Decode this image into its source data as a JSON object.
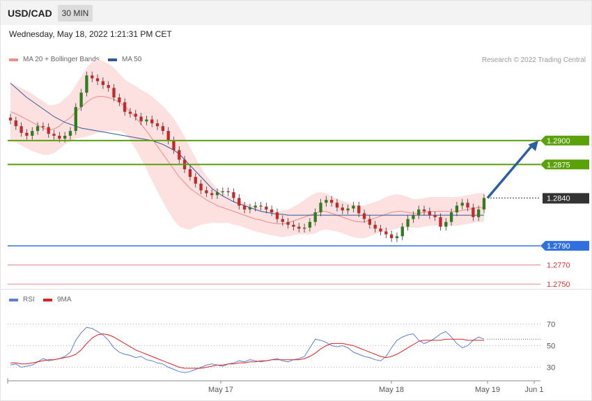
{
  "header": {
    "symbol": "USD/CAD",
    "timeframe": "30 MIN"
  },
  "timestamp": "Wednesday, May 18, 2022 1:21:31 PM CET",
  "legend": {
    "ma20_label": "MA 20 + Bollinger Bands",
    "ma20_color": "#f28a8a",
    "ma50_label": "MA 50",
    "ma50_color": "#2f5a9a"
  },
  "credit": "Research © 2022 Trading Central",
  "rsi_legend": {
    "rsi_label": "RSI",
    "rsi_color": "#5b7fd6",
    "ma_label": "9MA",
    "ma_color": "#e02020"
  },
  "chart_data": [
    {
      "type": "candlestick",
      "price_range": [
        1.2745,
        1.2985
      ],
      "levels": [
        {
          "value": 1.29,
          "label": "1.2900",
          "color": "#5aa10a",
          "kind": "resistance"
        },
        {
          "value": 1.2875,
          "label": "1.2875",
          "color": "#5aa10a",
          "kind": "resistance"
        },
        {
          "value": 1.284,
          "label": "1.2840",
          "color": "#333333",
          "kind": "current"
        },
        {
          "value": 1.279,
          "label": "1.2790",
          "color": "#2f6fe0",
          "kind": "pivot"
        },
        {
          "value": 1.277,
          "label": "1.2770",
          "color": "#e03030",
          "kind": "support"
        },
        {
          "value": 1.275,
          "label": "1.2750",
          "color": "#e03030",
          "kind": "support"
        }
      ],
      "arrow": {
        "from": 1.284,
        "to": 1.29,
        "color": "#2c5fa0"
      },
      "closes": [
        1.2921,
        1.2915,
        1.2908,
        1.2905,
        1.291,
        1.2915,
        1.2914,
        1.2907,
        1.2905,
        1.2902,
        1.2905,
        1.291,
        1.2935,
        1.295,
        1.2968,
        1.2965,
        1.2962,
        1.2958,
        1.2955,
        1.2945,
        1.294,
        1.293,
        1.2928,
        1.2925,
        1.292,
        1.2922,
        1.2918,
        1.2915,
        1.291,
        1.29,
        1.289,
        1.288,
        1.287,
        1.2862,
        1.2855,
        1.2848,
        1.2845,
        1.2843,
        1.2846,
        1.2847,
        1.2846,
        1.284,
        1.2832,
        1.2828,
        1.283,
        1.2832,
        1.2831,
        1.2828,
        1.2825,
        1.2818,
        1.2815,
        1.2812,
        1.281,
        1.2808,
        1.2809,
        1.2815,
        1.2825,
        1.2835,
        1.2838,
        1.2835,
        1.283,
        1.2827,
        1.2829,
        1.2832,
        1.2824,
        1.2818,
        1.2812,
        1.2808,
        1.2805,
        1.2802,
        1.2798,
        1.28,
        1.281,
        1.2818,
        1.2822,
        1.2828,
        1.2826,
        1.2822,
        1.282,
        1.281,
        1.2815,
        1.2825,
        1.2832,
        1.2835,
        1.283,
        1.282,
        1.2828,
        1.284
      ],
      "ma20": [
        1.293,
        1.2928,
        1.2925,
        1.2922,
        1.2919,
        1.2916,
        1.2913,
        1.2911,
        1.2912,
        1.2915,
        1.292,
        1.2924,
        1.293,
        1.2935,
        1.294,
        1.2944,
        1.2946,
        1.2946,
        1.2945,
        1.2943,
        1.294,
        1.2936,
        1.293,
        1.2924,
        1.2917,
        1.291,
        1.2902,
        1.2894,
        1.2886,
        1.2878,
        1.287,
        1.2862,
        1.2856,
        1.285,
        1.2846,
        1.2842,
        1.2838,
        1.2835,
        1.2832,
        1.283,
        1.2828,
        1.2826,
        1.2824,
        1.2822,
        1.282,
        1.2818,
        1.2817,
        1.2815,
        1.2814,
        1.2813,
        1.2813,
        1.2814,
        1.2816,
        1.2818,
        1.282,
        1.2822,
        1.2824,
        1.2826,
        1.2826,
        1.2824,
        1.2822,
        1.282,
        1.2818,
        1.2816,
        1.2815,
        1.2815,
        1.2817,
        1.2819,
        1.2821,
        1.2823,
        1.2825,
        1.2826,
        1.2826,
        1.2825,
        1.2824,
        1.2824,
        1.2825,
        1.2826,
        1.2826,
        1.2826,
        1.2826,
        1.2826,
        1.2826,
        1.2827,
        1.2828,
        1.2829,
        1.283,
        1.283
      ],
      "ma50": [
        1.296,
        1.2955,
        1.295,
        1.2945,
        1.2941,
        1.2937,
        1.2933,
        1.2929,
        1.2925,
        1.2922,
        1.2919,
        1.2917,
        1.2915,
        1.2913,
        1.2912,
        1.2911,
        1.291,
        1.2909,
        1.2908,
        1.2907,
        1.2906,
        1.2905,
        1.2904,
        1.2903,
        1.2902,
        1.2901,
        1.29,
        1.2898,
        1.2896,
        1.2893,
        1.289,
        1.2886,
        1.288,
        1.2874,
        1.2868,
        1.2862,
        1.2856,
        1.285,
        1.2846,
        1.2842,
        1.2839,
        1.2836,
        1.2834,
        1.2832,
        1.283,
        1.2828,
        1.2826,
        1.2825,
        1.2824,
        1.2823,
        1.2823,
        1.2822,
        1.2822,
        1.2822,
        1.2822,
        1.2822,
        1.2822,
        1.2822,
        1.2822,
        1.2822,
        1.2822,
        1.2822,
        1.2822,
        1.2822,
        1.2822,
        1.2822,
        1.2822,
        1.2822,
        1.2822,
        1.2822,
        1.2822,
        1.2822,
        1.2822,
        1.2822,
        1.2822,
        1.2822,
        1.2822,
        1.2822,
        1.2822,
        1.2822,
        1.2822,
        1.2822,
        1.2822,
        1.2822,
        1.2822,
        1.2822,
        1.2822,
        1.2822
      ],
      "band_width": [
        0.003,
        0.003,
        0.003,
        0.003,
        0.003,
        0.0029,
        0.0028,
        0.0026,
        0.0025,
        0.0024,
        0.0024,
        0.0025,
        0.0028,
        0.0032,
        0.0036,
        0.0038,
        0.0038,
        0.0037,
        0.0035,
        0.0033,
        0.003,
        0.0028,
        0.003,
        0.0033,
        0.0036,
        0.004,
        0.0044,
        0.0047,
        0.005,
        0.0052,
        0.0053,
        0.0052,
        0.0048,
        0.0043,
        0.0036,
        0.003,
        0.0025,
        0.0021,
        0.0018,
        0.0016,
        0.0014,
        0.0014,
        0.0013,
        0.0013,
        0.0013,
        0.0013,
        0.0013,
        0.0013,
        0.0013,
        0.0013,
        0.0014,
        0.0014,
        0.0015,
        0.0016,
        0.0018,
        0.002,
        0.0021,
        0.002,
        0.0019,
        0.0018,
        0.0017,
        0.0017,
        0.0017,
        0.0017,
        0.0017,
        0.0017,
        0.0017,
        0.0017,
        0.0017,
        0.0018,
        0.0018,
        0.0018,
        0.0017,
        0.0016,
        0.0015,
        0.0015,
        0.0015,
        0.0015,
        0.0015,
        0.0015,
        0.0015,
        0.0015,
        0.0015,
        0.0015,
        0.0015,
        0.0015,
        0.0015,
        0.0015
      ]
    },
    {
      "type": "line",
      "rsi_range": [
        20,
        80
      ],
      "rsi_levels": [
        {
          "value": 70,
          "label": "70"
        },
        {
          "value": 50,
          "label": "50"
        },
        {
          "value": 30,
          "label": "30"
        }
      ],
      "rsi": [
        32,
        33,
        30,
        31,
        32,
        35,
        38,
        36,
        37,
        38,
        40,
        44,
        55,
        62,
        67,
        66,
        63,
        60,
        55,
        48,
        44,
        42,
        41,
        39,
        40,
        37,
        36,
        34,
        33,
        30,
        28,
        26,
        25,
        26,
        28,
        30,
        32,
        33,
        32,
        31,
        33,
        34,
        36,
        35,
        37,
        36,
        35,
        36,
        37,
        38,
        36,
        35,
        37,
        38,
        40,
        48,
        56,
        55,
        53,
        50,
        49,
        50,
        48,
        44,
        42,
        40,
        39,
        37,
        36,
        40,
        48,
        55,
        58,
        60,
        61,
        55,
        52,
        54,
        57,
        61,
        63,
        58,
        52,
        48,
        50,
        55,
        58,
        56
      ],
      "rsi_ma": [
        34,
        34,
        33,
        33,
        34,
        35,
        36,
        37,
        37,
        38,
        39,
        40,
        42,
        46,
        52,
        57,
        60,
        61,
        60,
        58,
        55,
        52,
        49,
        46,
        44,
        42,
        40,
        38,
        36,
        34,
        32,
        30,
        29,
        29,
        29,
        29,
        30,
        31,
        32,
        32,
        33,
        33,
        34,
        34,
        35,
        35,
        36,
        36,
        37,
        37,
        37,
        37,
        37,
        37,
        38,
        40,
        43,
        47,
        50,
        52,
        52,
        52,
        51,
        50,
        48,
        46,
        44,
        42,
        40,
        39,
        40,
        42,
        45,
        48,
        51,
        54,
        55,
        55,
        55,
        55,
        56,
        56,
        56,
        56,
        55,
        55,
        55,
        55
      ],
      "time_labels": [
        "May 17",
        "May 18",
        "May 19",
        "Jun 1"
      ]
    }
  ]
}
